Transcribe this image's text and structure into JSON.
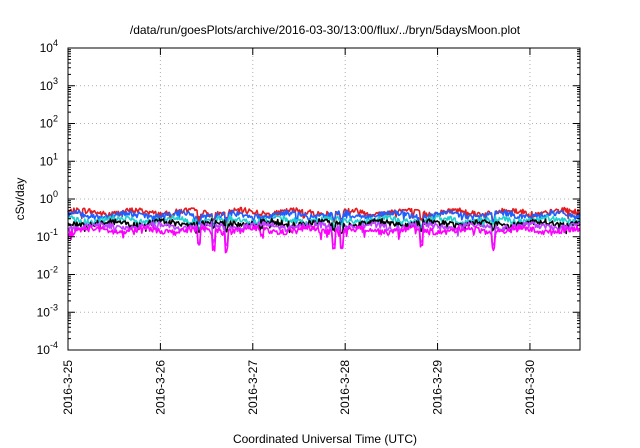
{
  "chart_data": {
    "type": "line",
    "title": "/data/run/goesPlots/archive/2016-03-30/13:00/flux/../bryn/5daysMoon.plot",
    "xlabel": "Coordinated Universal Time (UTC)",
    "ylabel": "cSv/day",
    "yscale": "log",
    "ylim": [
      0.0001,
      10000
    ],
    "xlim": [
      "2016-03-25T00:00",
      "2016-03-30T13:00"
    ],
    "x_ticks": [
      "2016-3-25",
      "2016-3-26",
      "2016-3-27",
      "2016-3-28",
      "2016-3-29",
      "2016-3-30"
    ],
    "y_ticks": [
      {
        "base": "10",
        "exp": "-4"
      },
      {
        "base": "10",
        "exp": "-3"
      },
      {
        "base": "10",
        "exp": "-2"
      },
      {
        "base": "10",
        "exp": "-1"
      },
      {
        "base": "10",
        "exp": "0"
      },
      {
        "base": "10",
        "exp": "1"
      },
      {
        "base": "10",
        "exp": "2"
      },
      {
        "base": "10",
        "exp": "3"
      },
      {
        "base": "10",
        "exp": "4"
      }
    ],
    "grid": true,
    "legend": "none",
    "series": [
      {
        "color": "#e41a1c",
        "level": 0.45
      },
      {
        "color": "#1f5fff",
        "level": 0.38
      },
      {
        "color": "#20d0d0",
        "level": 0.28
      },
      {
        "color": "#000000",
        "level": 0.23
      },
      {
        "color": "#c040ff",
        "level": 0.19
      },
      {
        "color": "#ff00ff",
        "level": 0.15
      }
    ]
  }
}
